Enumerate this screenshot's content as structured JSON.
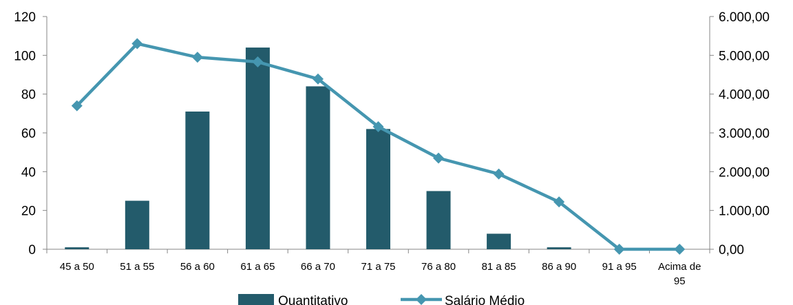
{
  "chart_data": {
    "type": "bar",
    "categories": [
      "45 a 50",
      "51 a 55",
      "56 a 60",
      "61 a 65",
      "66 a 70",
      "71 a 75",
      "76 a 80",
      "81 a 85",
      "86 a 90",
      "91 a 95",
      "Acima de 95"
    ],
    "category_lines": [
      [
        "45 a 50"
      ],
      [
        "51 a 55"
      ],
      [
        "56 a 60"
      ],
      [
        "61 a 65"
      ],
      [
        "66 a 70"
      ],
      [
        "71 a 75"
      ],
      [
        "76 a 80"
      ],
      [
        "81 a 85"
      ],
      [
        "86 a 90"
      ],
      [
        "91 a 95"
      ],
      [
        "Acima de",
        "95"
      ]
    ],
    "series": [
      {
        "name": "Quantitativo",
        "type": "bar",
        "axis": "left",
        "color": "#235B6B",
        "values": [
          1,
          25,
          71,
          104,
          84,
          62,
          30,
          8,
          1,
          0,
          0
        ]
      },
      {
        "name": "Salário Médio",
        "type": "line",
        "axis": "right",
        "color": "#4596B0",
        "marker": "diamond",
        "values": [
          3700,
          5300,
          4950,
          4830,
          4390,
          3160,
          2350,
          1940,
          1220,
          0,
          0
        ]
      }
    ],
    "y_left": {
      "ylim": [
        0,
        120
      ],
      "ticks": [
        0,
        20,
        40,
        60,
        80,
        100,
        120
      ],
      "tick_labels": [
        "0",
        "20",
        "40",
        "60",
        "80",
        "100",
        "120"
      ]
    },
    "y_right": {
      "ylim": [
        0,
        6000
      ],
      "ticks": [
        0,
        1000,
        2000,
        3000,
        4000,
        5000,
        6000
      ],
      "tick_labels": [
        "0,00",
        "1.000,00",
        "2.000,00",
        "3.000,00",
        "4.000,00",
        "5.000,00",
        "6.000,00"
      ]
    },
    "title": "",
    "xlabel": "",
    "ylabel": "",
    "grid": false,
    "legend": "bottom"
  }
}
